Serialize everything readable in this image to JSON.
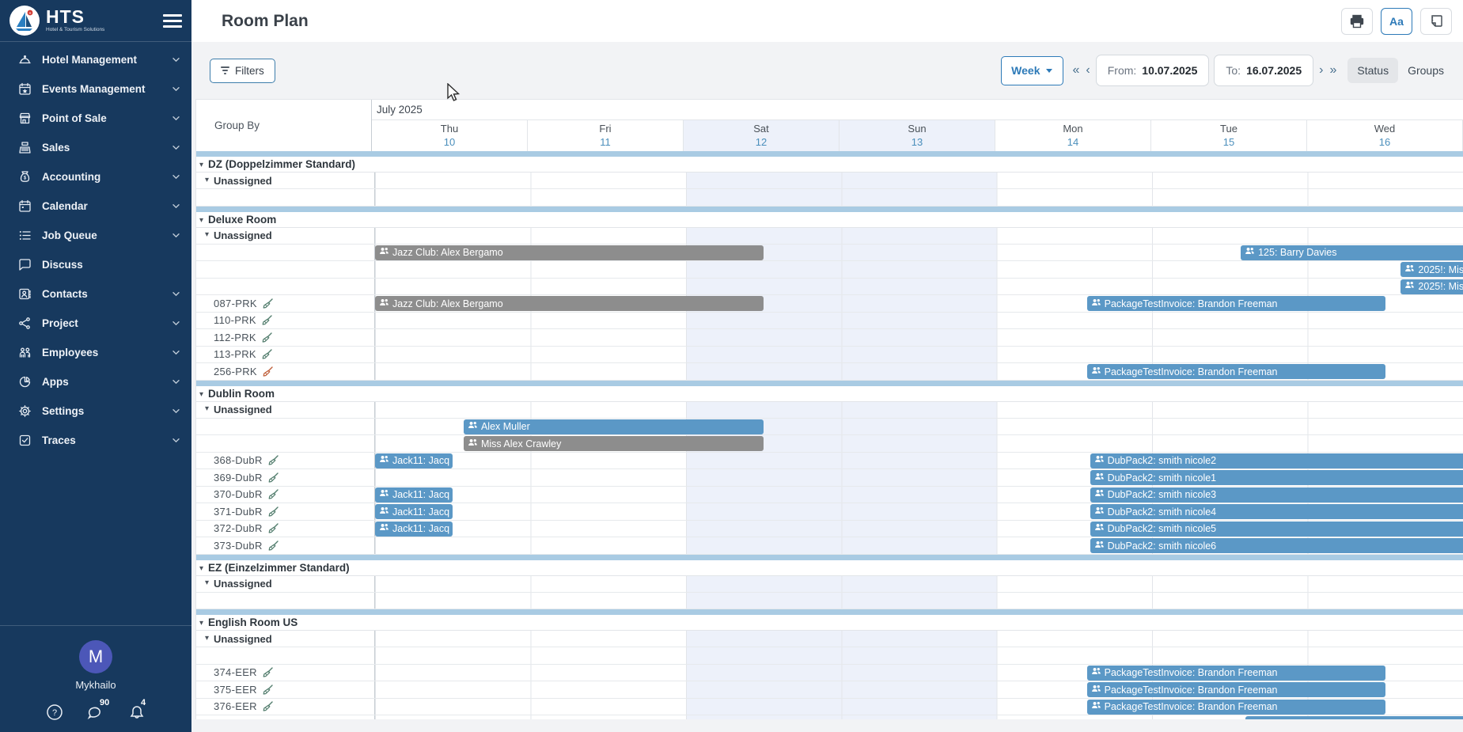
{
  "sidebar": {
    "logo_title": "HTS",
    "logo_subtitle": "Hotel & Tourism Solutions",
    "items": [
      {
        "label": "Hotel Management",
        "icon": "hotel",
        "chevron": true
      },
      {
        "label": "Events Management",
        "icon": "events",
        "chevron": true
      },
      {
        "label": "Point of Sale",
        "icon": "pos",
        "chevron": true
      },
      {
        "label": "Sales",
        "icon": "sales",
        "chevron": true
      },
      {
        "label": "Accounting",
        "icon": "accounting",
        "chevron": true
      },
      {
        "label": "Calendar",
        "icon": "calendar",
        "chevron": true
      },
      {
        "label": "Job Queue",
        "icon": "jobqueue",
        "chevron": true
      },
      {
        "label": "Discuss",
        "icon": "discuss",
        "chevron": false
      },
      {
        "label": "Contacts",
        "icon": "contacts",
        "chevron": true
      },
      {
        "label": "Project",
        "icon": "project",
        "chevron": true
      },
      {
        "label": "Employees",
        "icon": "employees",
        "chevron": true
      },
      {
        "label": "Apps",
        "icon": "apps",
        "chevron": true
      },
      {
        "label": "Settings",
        "icon": "settings",
        "chevron": true
      },
      {
        "label": "Traces",
        "icon": "traces",
        "chevron": true
      }
    ],
    "user": {
      "initial": "M",
      "name": "Mykhailo",
      "chat_badge": "90",
      "bell_badge": "4"
    }
  },
  "header": {
    "title": "Room Plan",
    "font_button_label": "Aa"
  },
  "toolbar": {
    "filters_label": "Filters",
    "range_label": "Week",
    "nav_far_prev": "«",
    "nav_prev": "‹",
    "nav_next": "›",
    "nav_far_next": "»",
    "from_label": "From:",
    "from_value": "10.07.2025",
    "to_label": "To:",
    "to_value": "16.07.2025",
    "status_label": "Status",
    "groups_label": "Groups"
  },
  "grid": {
    "group_by_label": "Group By",
    "month_label": "July 2025",
    "days": [
      {
        "name": "Thu",
        "num": "10",
        "weekend": false
      },
      {
        "name": "Fri",
        "num": "11",
        "weekend": false
      },
      {
        "name": "Sat",
        "num": "12",
        "weekend": true
      },
      {
        "name": "Sun",
        "num": "13",
        "weekend": true
      },
      {
        "name": "Mon",
        "num": "14",
        "weekend": false
      },
      {
        "name": "Tue",
        "num": "15",
        "weekend": false
      },
      {
        "name": "Wed",
        "num": "16",
        "weekend": false
      }
    ],
    "colors": {
      "bar_blue": "#5b98c6",
      "bar_gray": "#8d8d8d",
      "band": "#a9cbe3",
      "weekend": "#edf1fa",
      "broom_green": "#527d6d",
      "broom_orange": "#bf5f3a"
    },
    "groups": [
      {
        "name": "DZ (Doppelzimmer Standard)",
        "rows": [
          {
            "type": "sub",
            "label": "Unassigned",
            "bars": []
          },
          {
            "type": "room",
            "label": "",
            "broom": null,
            "bars": []
          }
        ]
      },
      {
        "name": "Deluxe Room",
        "rows": [
          {
            "type": "sub",
            "label": "Unassigned",
            "bars": []
          },
          {
            "type": "room",
            "label": "",
            "broom": null,
            "bars": [
              {
                "label": "Jazz Club: Alex Bergamo",
                "color": "gray",
                "start": 0,
                "end": 2.5
              },
              {
                "label": "125: Barry Davies",
                "color": "blue",
                "start": 5.57,
                "end": 7.4
              }
            ]
          },
          {
            "type": "room",
            "label": "",
            "broom": null,
            "bars": [
              {
                "label": "2025!: Mis",
                "color": "blue",
                "start": 6.6,
                "end": 7.4
              }
            ]
          },
          {
            "type": "room",
            "label": "",
            "broom": null,
            "bars": [
              {
                "label": "2025!: Mis",
                "color": "blue",
                "start": 6.6,
                "end": 7.4
              }
            ]
          },
          {
            "type": "room",
            "label": "087-PRK",
            "broom": "green",
            "bars": [
              {
                "label": "Jazz Club: Alex Bergamo",
                "color": "gray",
                "start": 0,
                "end": 2.5
              },
              {
                "label": "PackageTestInvoice: Brandon Freeman",
                "color": "blue",
                "start": 4.58,
                "end": 6.5
              }
            ]
          },
          {
            "type": "room",
            "label": "110-PRK",
            "broom": "green",
            "bars": []
          },
          {
            "type": "room",
            "label": "112-PRK",
            "broom": "green",
            "bars": []
          },
          {
            "type": "room",
            "label": "113-PRK",
            "broom": "green",
            "bars": []
          },
          {
            "type": "room",
            "label": "256-PRK",
            "broom": "orange",
            "bars": [
              {
                "label": "PackageTestInvoice: Brandon Freeman",
                "color": "blue",
                "start": 4.58,
                "end": 6.5
              }
            ]
          }
        ]
      },
      {
        "name": "Dublin Room",
        "rows": [
          {
            "type": "sub",
            "label": "Unassigned",
            "bars": []
          },
          {
            "type": "room",
            "label": "",
            "broom": null,
            "bars": [
              {
                "label": "Alex Muller",
                "color": "blue",
                "start": 0.57,
                "end": 2.5
              }
            ]
          },
          {
            "type": "room",
            "label": "",
            "broom": null,
            "bars": [
              {
                "label": "Miss Alex Crawley",
                "color": "gray",
                "start": 0.57,
                "end": 2.5
              }
            ]
          },
          {
            "type": "room",
            "label": "368-DubR",
            "broom": "green",
            "bars": [
              {
                "label": "Jack11: Jacq",
                "color": "blue",
                "start": 0,
                "end": 0.5
              },
              {
                "label": "DubPack2: smith nicole2",
                "color": "blue",
                "start": 4.6,
                "end": 7.4
              }
            ]
          },
          {
            "type": "room",
            "label": "369-DubR",
            "broom": "green",
            "bars": [
              {
                "label": "DubPack2: smith nicole1",
                "color": "blue",
                "start": 4.6,
                "end": 7.4
              }
            ]
          },
          {
            "type": "room",
            "label": "370-DubR",
            "broom": "green",
            "bars": [
              {
                "label": "Jack11: Jacq",
                "color": "blue",
                "start": 0,
                "end": 0.5
              },
              {
                "label": "DubPack2: smith nicole3",
                "color": "blue",
                "start": 4.6,
                "end": 7.4
              }
            ]
          },
          {
            "type": "room",
            "label": "371-DubR",
            "broom": "green",
            "bars": [
              {
                "label": "Jack11: Jacq",
                "color": "blue",
                "start": 0,
                "end": 0.5
              },
              {
                "label": "DubPack2: smith nicole4",
                "color": "blue",
                "start": 4.6,
                "end": 7.4
              }
            ]
          },
          {
            "type": "room",
            "label": "372-DubR",
            "broom": "green",
            "bars": [
              {
                "label": "Jack11: Jacq",
                "color": "blue",
                "start": 0,
                "end": 0.5
              },
              {
                "label": "DubPack2: smith nicole5",
                "color": "blue",
                "start": 4.6,
                "end": 7.4
              }
            ]
          },
          {
            "type": "room",
            "label": "373-DubR",
            "broom": "green",
            "bars": [
              {
                "label": "DubPack2: smith nicole6",
                "color": "blue",
                "start": 4.6,
                "end": 7.4
              }
            ]
          }
        ]
      },
      {
        "name": "EZ (Einzelzimmer Standard)",
        "rows": [
          {
            "type": "sub",
            "label": "Unassigned",
            "bars": []
          },
          {
            "type": "room",
            "label": "",
            "broom": null,
            "bars": []
          }
        ]
      },
      {
        "name": "English Room US",
        "rows": [
          {
            "type": "sub",
            "label": "Unassigned",
            "bars": []
          },
          {
            "type": "room",
            "label": "",
            "broom": null,
            "bars": []
          },
          {
            "type": "room",
            "label": "374-EER",
            "broom": "green",
            "bars": [
              {
                "label": "PackageTestInvoice: Brandon Freeman",
                "color": "blue",
                "start": 4.58,
                "end": 6.5
              }
            ]
          },
          {
            "type": "room",
            "label": "375-EER",
            "broom": "green",
            "bars": [
              {
                "label": "PackageTestInvoice: Brandon Freeman",
                "color": "blue",
                "start": 4.58,
                "end": 6.5
              }
            ]
          },
          {
            "type": "room",
            "label": "376-EER",
            "broom": "green",
            "bars": [
              {
                "label": "PackageTestInvoice: Brandon Freeman",
                "color": "blue",
                "start": 4.58,
                "end": 6.5
              }
            ]
          },
          {
            "type": "sliver",
            "label": "",
            "bars": [
              {
                "label": "",
                "color": "blue",
                "start": 5.6,
                "end": 7.4
              }
            ]
          }
        ]
      }
    ]
  }
}
